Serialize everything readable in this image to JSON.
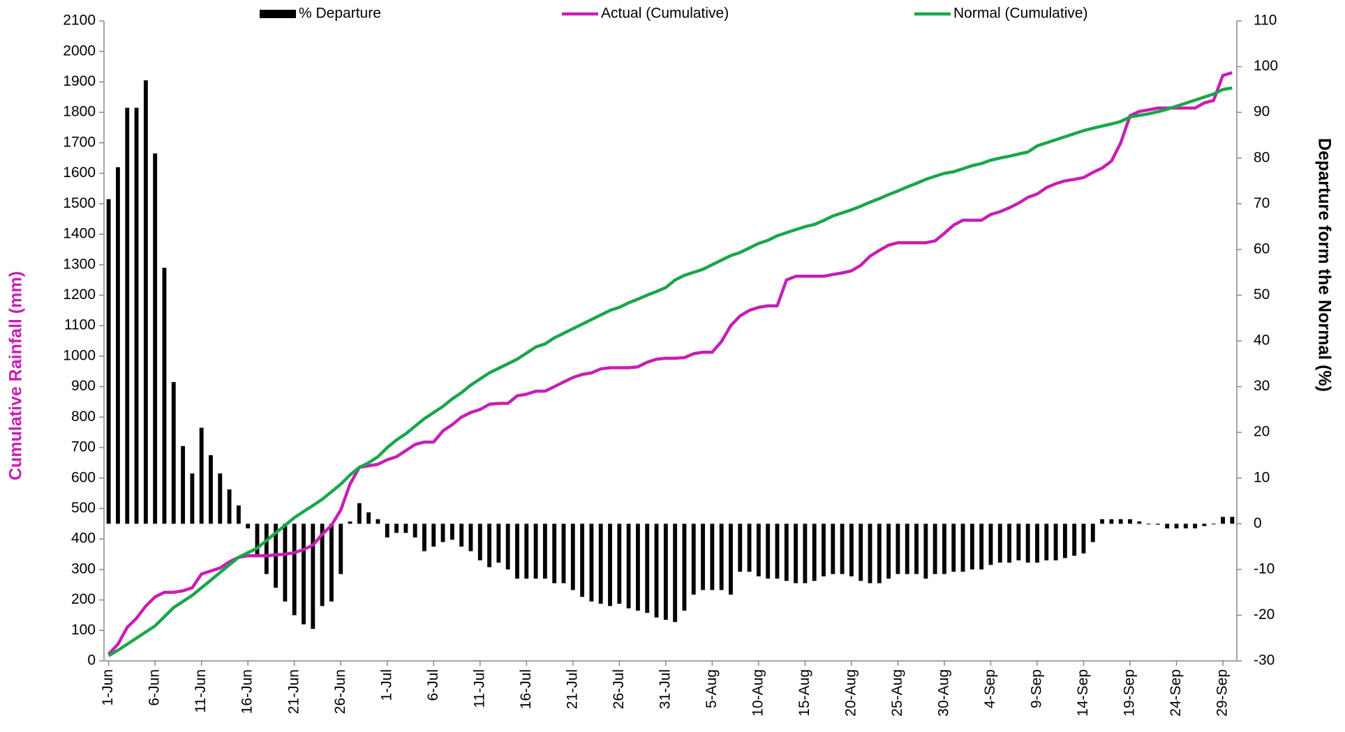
{
  "chart_data": {
    "type": "combo",
    "categories": [
      "1-Jun",
      null,
      null,
      null,
      null,
      "6-Jun",
      null,
      null,
      null,
      null,
      "11-Jun",
      null,
      null,
      null,
      null,
      "16-Jun",
      null,
      null,
      null,
      null,
      "21-Jun",
      null,
      null,
      null,
      null,
      "26-Jun",
      null,
      null,
      null,
      null,
      "1-Jul",
      null,
      null,
      null,
      null,
      "6-Jul",
      null,
      null,
      null,
      null,
      "11-Jul",
      null,
      null,
      null,
      null,
      "16-Jul",
      null,
      null,
      null,
      null,
      "21-Jul",
      null,
      null,
      null,
      null,
      "26-Jul",
      null,
      null,
      null,
      null,
      "31-Jul",
      null,
      null,
      null,
      null,
      "5-Aug",
      null,
      null,
      null,
      null,
      "10-Aug",
      null,
      null,
      null,
      null,
      "15-Aug",
      null,
      null,
      null,
      null,
      "20-Aug",
      null,
      null,
      null,
      null,
      "25-Aug",
      null,
      null,
      null,
      null,
      "30-Aug",
      null,
      null,
      null,
      null,
      "4-Sep",
      null,
      null,
      null,
      null,
      "9-Sep",
      null,
      null,
      null,
      null,
      "14-Sep",
      null,
      null,
      null,
      null,
      "19-Sep",
      null,
      null,
      null,
      null,
      "24-Sep",
      null,
      null,
      null,
      null,
      "29-Sep",
      null
    ],
    "series": [
      {
        "name": "% Departure",
        "type": "bar",
        "axis": "y2",
        "color": "#000000",
        "values": [
          71,
          78,
          91,
          91,
          97,
          81,
          56,
          31,
          17,
          11,
          21,
          15,
          11,
          7.5,
          4,
          -1,
          -7,
          -11,
          -14,
          -17,
          -20,
          -22,
          -23,
          -18,
          -17,
          -11,
          0.5,
          4.5,
          2.5,
          1,
          -3,
          -2,
          -2,
          -3,
          -6,
          -5,
          -4,
          -3.5,
          -5,
          -6,
          -8,
          -9.5,
          -8.5,
          -10,
          -12,
          -12,
          -12,
          -12,
          -13,
          -13,
          -14.5,
          -16,
          -17,
          -17.5,
          -18,
          -17.5,
          -18.5,
          -19,
          -19.5,
          -20.5,
          -21,
          -21.5,
          -19,
          -15.5,
          -14.5,
          -14.5,
          -14.5,
          -15.5,
          -10.5,
          -10.5,
          -11.5,
          -12,
          -12,
          -12.5,
          -13,
          -13,
          -12.5,
          -11.5,
          -11,
          -11,
          -11.5,
          -12.5,
          -13,
          -13,
          -12,
          -11,
          -11,
          -11,
          -12,
          -11,
          -11,
          -10.5,
          -10.5,
          -10,
          -10,
          -9,
          -8.5,
          -8.5,
          -8,
          -8.5,
          -8.5,
          -8,
          -8,
          -7.5,
          -7,
          -6.5,
          -4,
          1,
          1,
          1,
          1,
          0.5,
          0,
          -0.2,
          -1,
          -1,
          -1,
          -1,
          -0.5,
          0,
          1.5,
          1.5
        ]
      },
      {
        "name": "Actual (Cumulative)",
        "type": "line",
        "axis": "y",
        "color": "#c71fb4",
        "values": [
          22,
          55,
          110,
          140,
          180,
          210,
          225,
          225,
          230,
          240,
          285,
          295,
          305,
          325,
          340,
          345,
          345,
          345,
          348,
          350,
          355,
          365,
          380,
          415,
          445,
          495,
          580,
          635,
          640,
          645,
          660,
          670,
          690,
          710,
          718,
          718,
          755,
          775,
          800,
          815,
          825,
          842,
          845,
          845,
          870,
          875,
          885,
          885,
          900,
          915,
          930,
          940,
          945,
          958,
          962,
          962,
          962,
          965,
          980,
          990,
          993,
          993,
          995,
          1008,
          1013,
          1013,
          1048,
          1100,
          1132,
          1150,
          1160,
          1165,
          1165,
          1250,
          1262,
          1262,
          1262,
          1262,
          1268,
          1273,
          1280,
          1298,
          1328,
          1347,
          1364,
          1372,
          1372,
          1372,
          1372,
          1378,
          1403,
          1430,
          1446,
          1446,
          1446,
          1465,
          1474,
          1487,
          1502,
          1521,
          1532,
          1553,
          1566,
          1575,
          1580,
          1586,
          1603,
          1617,
          1640,
          1700,
          1789,
          1803,
          1808,
          1814,
          1814,
          1814,
          1814,
          1814,
          1831,
          1839,
          1921,
          1930
        ]
      },
      {
        "name": "Normal (Cumulative)",
        "type": "line",
        "axis": "y",
        "color": "#1aa64a",
        "values": [
          17,
          35,
          55,
          75,
          95,
          115,
          145,
          175,
          195,
          215,
          240,
          265,
          290,
          315,
          340,
          355,
          370,
          395,
          420,
          445,
          470,
          490,
          510,
          530,
          555,
          580,
          610,
          635,
          650,
          670,
          700,
          725,
          745,
          770,
          795,
          815,
          835,
          860,
          880,
          905,
          925,
          945,
          960,
          975,
          990,
          1010,
          1030,
          1040,
          1060,
          1075,
          1090,
          1105,
          1120,
          1135,
          1150,
          1160,
          1175,
          1187,
          1200,
          1212,
          1225,
          1250,
          1265,
          1275,
          1285,
          1300,
          1315,
          1330,
          1340,
          1355,
          1370,
          1380,
          1395,
          1405,
          1415,
          1425,
          1432,
          1445,
          1460,
          1470,
          1480,
          1492,
          1505,
          1517,
          1530,
          1542,
          1555,
          1567,
          1580,
          1590,
          1600,
          1605,
          1615,
          1625,
          1632,
          1643,
          1650,
          1656,
          1663,
          1670,
          1690,
          1700,
          1710,
          1720,
          1730,
          1740,
          1748,
          1755,
          1762,
          1770,
          1785,
          1790,
          1795,
          1802,
          1810,
          1820,
          1830,
          1840,
          1850,
          1860,
          1875,
          1880
        ]
      }
    ],
    "ylabel": "Cumulative Rainfall (mm)",
    "y2label": "Departure form the Normal (%)",
    "ylim": [
      0,
      2100
    ],
    "yticks": [
      0,
      100,
      200,
      300,
      400,
      500,
      600,
      700,
      800,
      900,
      1000,
      1100,
      1200,
      1300,
      1400,
      1500,
      1600,
      1700,
      1800,
      1900,
      2000,
      2100
    ],
    "y2lim": [
      -30,
      110
    ],
    "y2ticks": [
      -30,
      -20,
      -10,
      0,
      10,
      20,
      30,
      40,
      50,
      60,
      70,
      80,
      90,
      100,
      110
    ],
    "legend": "top",
    "grid": false
  }
}
